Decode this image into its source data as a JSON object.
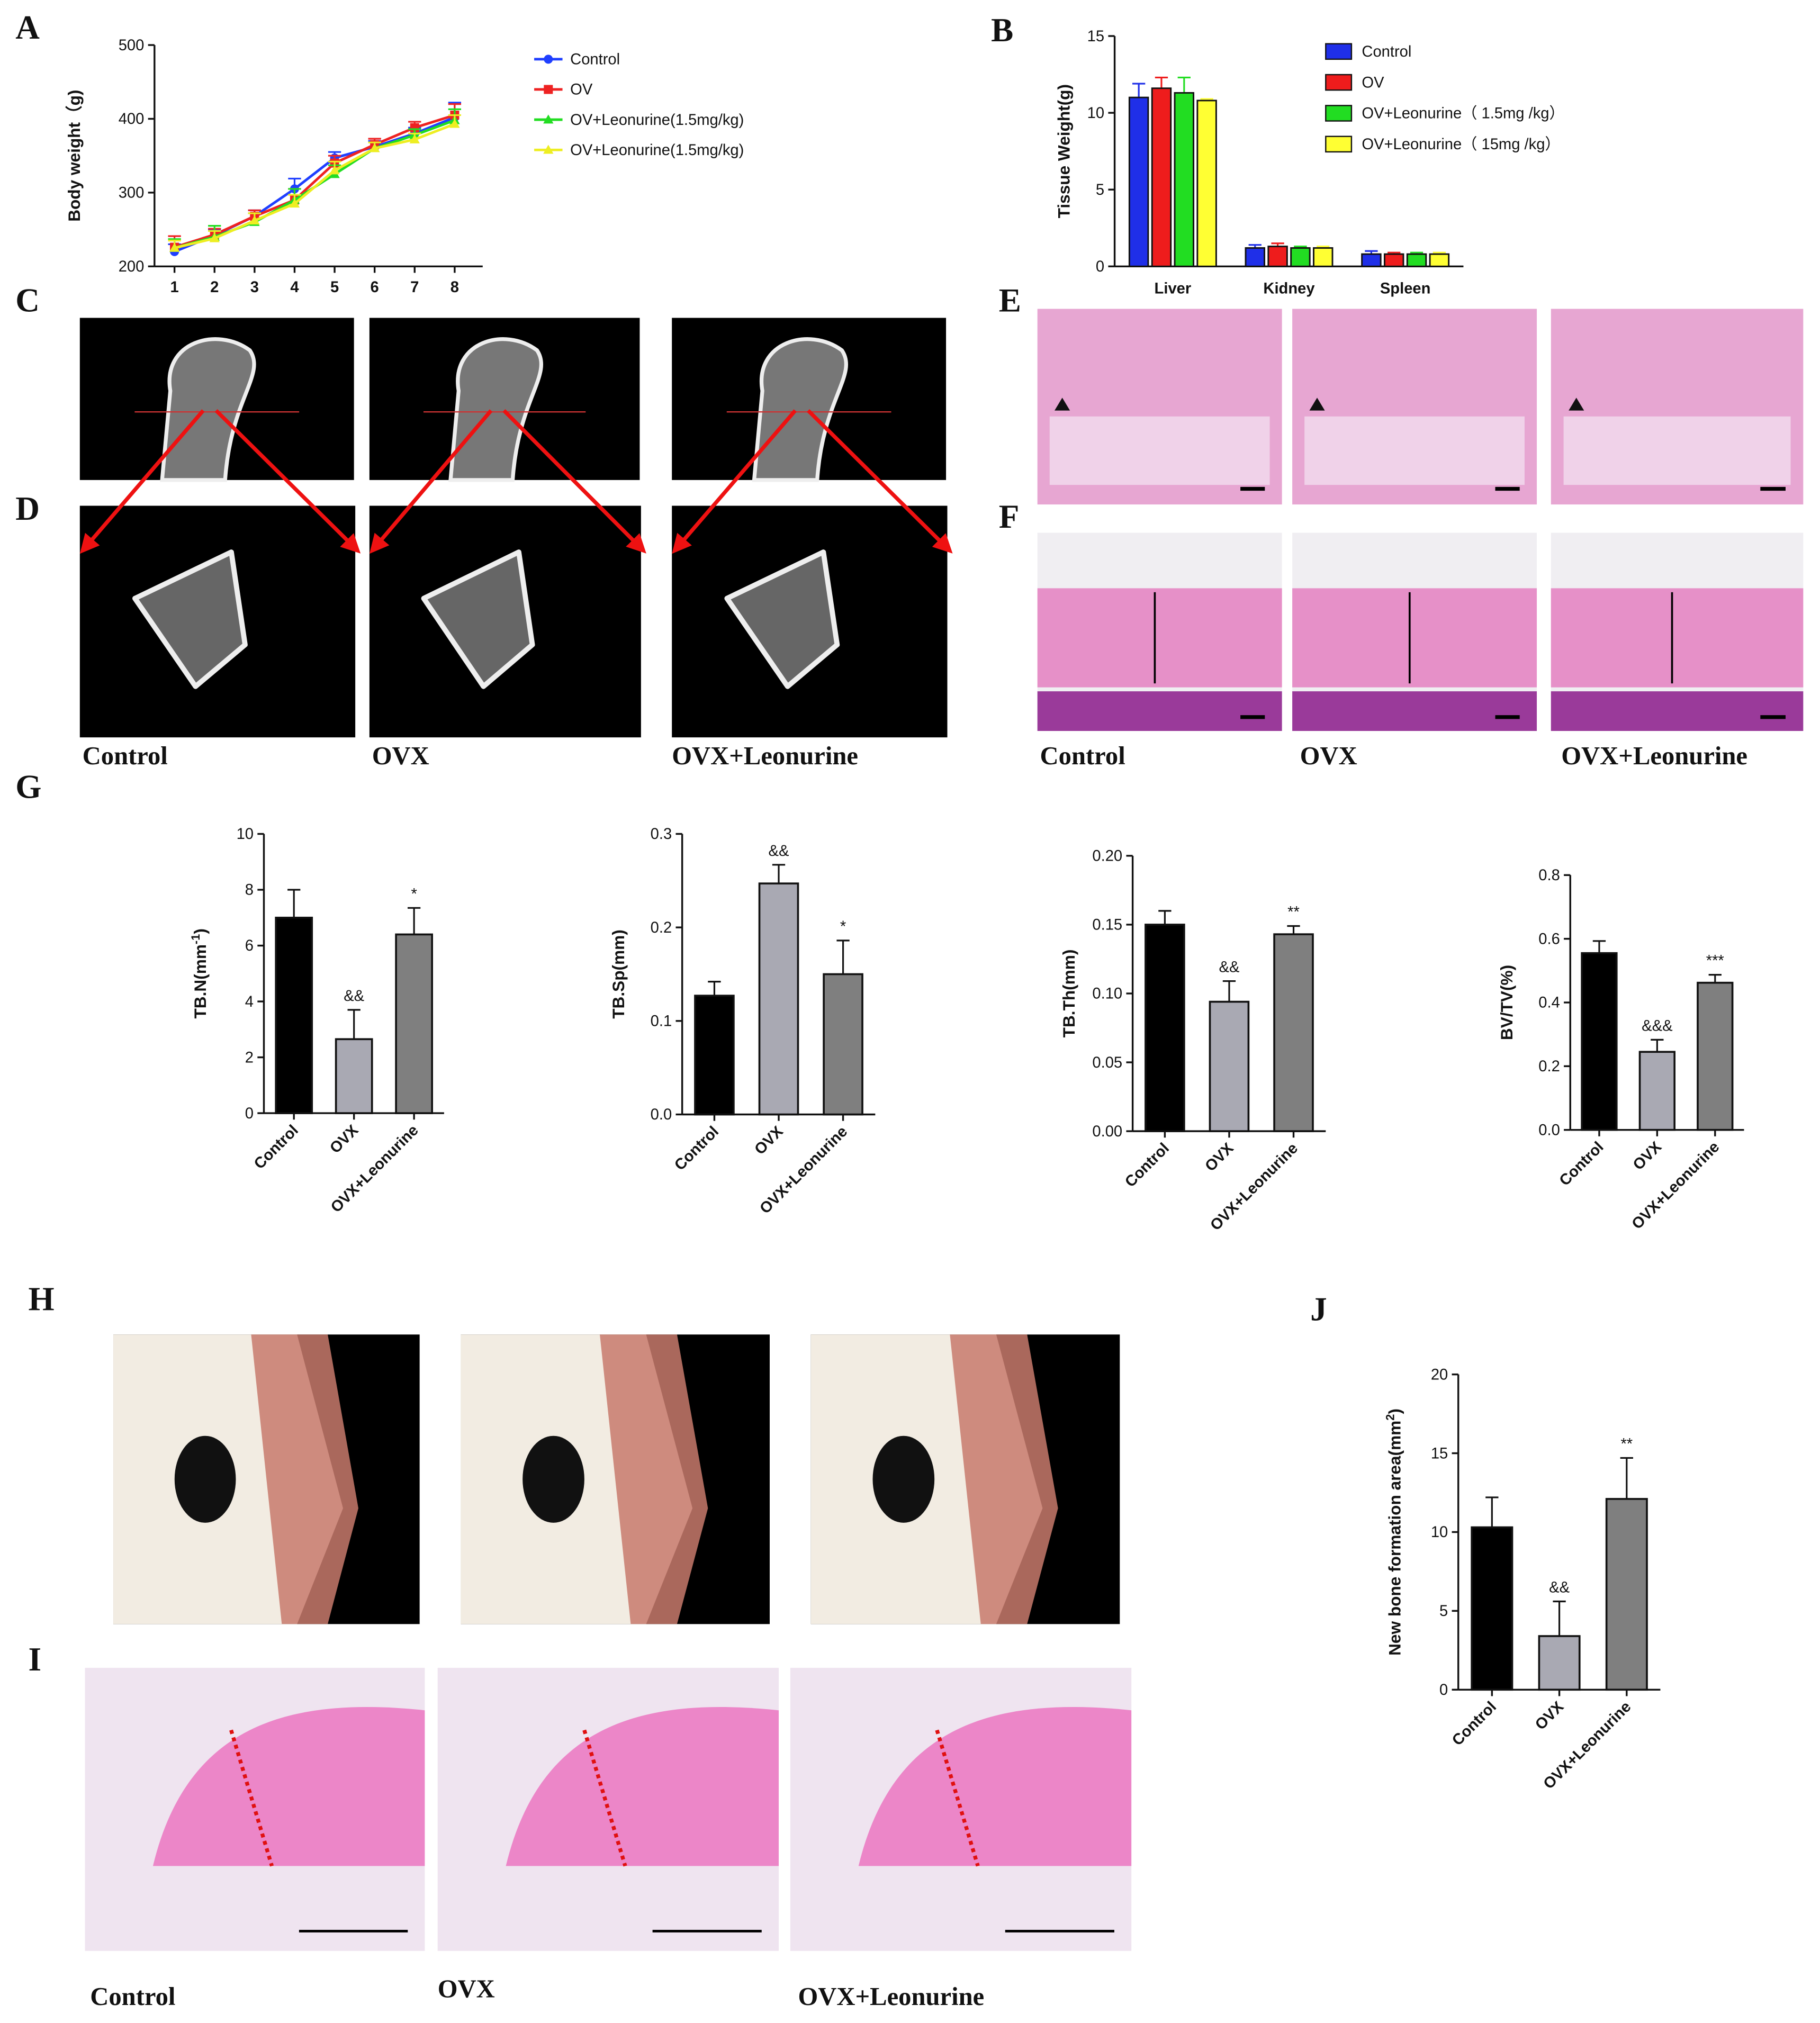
{
  "panel_letters": [
    "A",
    "B",
    "C",
    "D",
    "E",
    "F",
    "G",
    "H",
    "I",
    "J"
  ],
  "image_captions": {
    "D": [
      "Control",
      "OVX",
      "OVX+Leonurine"
    ],
    "F": [
      "Control",
      "OVX",
      "OVX+Leonurine"
    ],
    "I": [
      "Control",
      "OVX",
      "OVX+Leonurine"
    ]
  },
  "chart_data": [
    {
      "type": "line",
      "ylabel": "Body weight（g)",
      "x": [
        1,
        2,
        3,
        4,
        5,
        6,
        7,
        8
      ],
      "xlim": [
        0.5,
        8.7
      ],
      "xticks": [
        1,
        2,
        3,
        4,
        5,
        6,
        7,
        8
      ],
      "ylim": [
        200,
        500
      ],
      "yticks": [
        200,
        300,
        400,
        500
      ],
      "series": [
        {
          "name": "Control",
          "color": "#1f3fff",
          "marker": "circle",
          "values": [
            220,
            242,
            268,
            305,
            347,
            362,
            380,
            402
          ],
          "errors": [
            10,
            8,
            8,
            14,
            8,
            8,
            8,
            20
          ]
        },
        {
          "name": "OV",
          "color": "#ee2222",
          "marker": "square",
          "values": [
            226,
            243,
            268,
            290,
            340,
            365,
            388,
            405
          ],
          "errors": [
            15,
            8,
            8,
            15,
            10,
            8,
            8,
            15
          ]
        },
        {
          "name": "OV+Leonurine(1.5mg/kg)",
          "color": "#22dd22",
          "marker": "triangle",
          "values": [
            225,
            240,
            260,
            290,
            325,
            360,
            378,
            398
          ],
          "errors": [
            12,
            15,
            12,
            15,
            12,
            8,
            8,
            15
          ]
        },
        {
          "name": "OV+Leonurine(1.5mg/kg)",
          "color": "#eeee22",
          "marker": "triangle",
          "values": [
            225,
            238,
            262,
            285,
            330,
            360,
            372,
            393
          ],
          "errors": [
            10,
            10,
            10,
            12,
            12,
            8,
            8,
            12
          ]
        }
      ]
    },
    {
      "type": "grouped-bar",
      "ylabel": "Tissue Weight(g)",
      "categories": [
        "Liver",
        "Kidney",
        "Spleen"
      ],
      "ylim": [
        0,
        15
      ],
      "yticks": [
        0,
        5,
        10,
        15
      ],
      "series": [
        {
          "name": "Control",
          "color": "#1f2fe8",
          "values": [
            11,
            1.2,
            0.8
          ],
          "errors": [
            0.9,
            0.2,
            0.2
          ]
        },
        {
          "name": "OV",
          "color": "#ee1c1c",
          "values": [
            11.6,
            1.3,
            0.8
          ],
          "errors": [
            0.7,
            0.2,
            0.1
          ]
        },
        {
          "name": "OV+Leonurine（ 1.5mg /kg）",
          "color": "#22dd22",
          "values": [
            11.3,
            1.2,
            0.8
          ],
          "errors": [
            1.0,
            0.1,
            0.1
          ]
        },
        {
          "name": "OV+Leonurine（ 15mg /kg）",
          "color": "#ffff33",
          "values": [
            10.8,
            1.2,
            0.8
          ],
          "errors": [
            0.1,
            0.1,
            0.1
          ]
        }
      ]
    },
    {
      "type": "bar",
      "ylabel": {
        "text": "TB.N(mm",
        "sup": "-1",
        "after": ")"
      },
      "categories": [
        "Control",
        "OVX",
        "OVX+Leonurine"
      ],
      "colors": [
        "#000000",
        "#a9a9b3",
        "#7f7f7f"
      ],
      "ylim": [
        0,
        10
      ],
      "yticks": [
        0,
        2,
        4,
        6,
        8,
        10
      ],
      "values": [
        7.0,
        2.65,
        6.4
      ],
      "errors": [
        1.0,
        1.05,
        0.95
      ],
      "annotations": [
        null,
        "&&",
        "*"
      ]
    },
    {
      "type": "bar",
      "ylabel": {
        "text": "TB.Sp(mm)"
      },
      "categories": [
        "Control",
        "OVX",
        "OVX+Leonurine"
      ],
      "colors": [
        "#000000",
        "#a9a9b3",
        "#7f7f7f"
      ],
      "ylim": [
        0,
        0.3
      ],
      "yticks": [
        {
          "value": 0,
          "label": "0.0"
        },
        0.1,
        0.2,
        0.3
      ],
      "values": [
        0.127,
        0.247,
        0.15
      ],
      "errors": [
        0.015,
        0.02,
        0.036
      ],
      "annotations": [
        null,
        "&&",
        "*"
      ]
    },
    {
      "type": "bar",
      "ylabel": {
        "text": "TB.Th(mm)"
      },
      "categories": [
        "Control",
        "OVX",
        "OVX+Leonurine"
      ],
      "colors": [
        "#000000",
        "#a9a9b3",
        "#7f7f7f"
      ],
      "ylim": [
        0,
        0.2
      ],
      "yticks": [
        {
          "value": 0,
          "label": "0.00"
        },
        0.05,
        {
          "value": 0.1,
          "label": "0.10"
        },
        0.15,
        {
          "value": 0.2,
          "label": "0.20"
        }
      ],
      "values": [
        0.15,
        0.094,
        0.143
      ],
      "errors": [
        0.01,
        0.015,
        0.006
      ],
      "annotations": [
        null,
        "&&",
        "**"
      ]
    },
    {
      "type": "bar",
      "ylabel": {
        "text": "BV/TV(%)"
      },
      "categories": [
        "Control",
        "OVX",
        "OVX+Leonurine"
      ],
      "colors": [
        "#000000",
        "#a9a9b3",
        "#7f7f7f"
      ],
      "ylim": [
        0,
        0.8
      ],
      "yticks": [
        {
          "value": 0,
          "label": "0.0"
        },
        0.2,
        0.4,
        0.6,
        0.8
      ],
      "values": [
        0.555,
        0.245,
        0.462
      ],
      "errors": [
        0.038,
        0.038,
        0.025
      ],
      "annotations": [
        null,
        "&&&",
        "***"
      ]
    },
    {
      "type": "bar",
      "ylabel": {
        "text": "New bone formation area(mm",
        "sup": "2",
        "after": ")"
      },
      "categories": [
        "Control",
        "OVX",
        "OVX+Leonurine"
      ],
      "colors": [
        "#000000",
        "#a9a9b3",
        "#7f7f7f"
      ],
      "ylim": [
        0,
        20
      ],
      "yticks": [
        0,
        5,
        10,
        15,
        20
      ],
      "values": [
        10.3,
        3.4,
        12.1
      ],
      "errors": [
        1.9,
        2.2,
        2.6
      ],
      "annotations": [
        null,
        "&&",
        "**"
      ]
    }
  ]
}
